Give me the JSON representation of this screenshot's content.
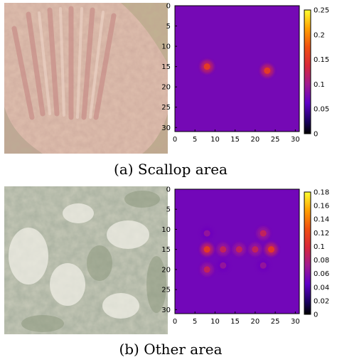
{
  "figure": {
    "caption_a": "(a) Scallop area",
    "caption_b": "(b) Other area"
  },
  "chart_data": [
    {
      "type": "heatmap",
      "title": "",
      "xlabel": "",
      "ylabel": "",
      "x_ticks": [
        "0",
        "5",
        "10",
        "15",
        "20",
        "25",
        "30"
      ],
      "y_ticks": [
        "0",
        "5",
        "10",
        "15",
        "20",
        "25",
        "30"
      ],
      "colorbar_ticks": [
        "0",
        "0.05",
        "0.1",
        "0.15",
        "0.2",
        "0.25"
      ],
      "xlim": [
        0,
        31
      ],
      "ylim": [
        0,
        31
      ],
      "vmin": 0,
      "vmax": 0.25,
      "y_inverted": true,
      "background_value": 0.03,
      "peaks": [
        {
          "x": 8,
          "y": 15,
          "value": 0.14
        },
        {
          "x": 23,
          "y": 16,
          "value": 0.14
        }
      ]
    },
    {
      "type": "heatmap",
      "title": "",
      "xlabel": "",
      "ylabel": "",
      "x_ticks": [
        "0",
        "5",
        "10",
        "15",
        "20",
        "25",
        "30"
      ],
      "y_ticks": [
        "0",
        "5",
        "10",
        "15",
        "20",
        "25",
        "30"
      ],
      "colorbar_ticks": [
        "0",
        "0.02",
        "0.04",
        "0.06",
        "0.08",
        "0.1",
        "0.12",
        "0.14",
        "0.16",
        "0.18"
      ],
      "xlim": [
        0,
        31
      ],
      "ylim": [
        0,
        31
      ],
      "vmin": 0,
      "vmax": 0.18,
      "y_inverted": true,
      "background_value": 0.02,
      "peaks": [
        {
          "x": 8,
          "y": 15,
          "value": 0.1
        },
        {
          "x": 12,
          "y": 15,
          "value": 0.08
        },
        {
          "x": 16,
          "y": 15,
          "value": 0.08
        },
        {
          "x": 20,
          "y": 15,
          "value": 0.08
        },
        {
          "x": 24,
          "y": 15,
          "value": 0.1
        },
        {
          "x": 8,
          "y": 11,
          "value": 0.06
        },
        {
          "x": 22,
          "y": 11,
          "value": 0.08
        },
        {
          "x": 8,
          "y": 20,
          "value": 0.08
        },
        {
          "x": 12,
          "y": 19,
          "value": 0.06
        },
        {
          "x": 22,
          "y": 19,
          "value": 0.06
        }
      ]
    }
  ]
}
